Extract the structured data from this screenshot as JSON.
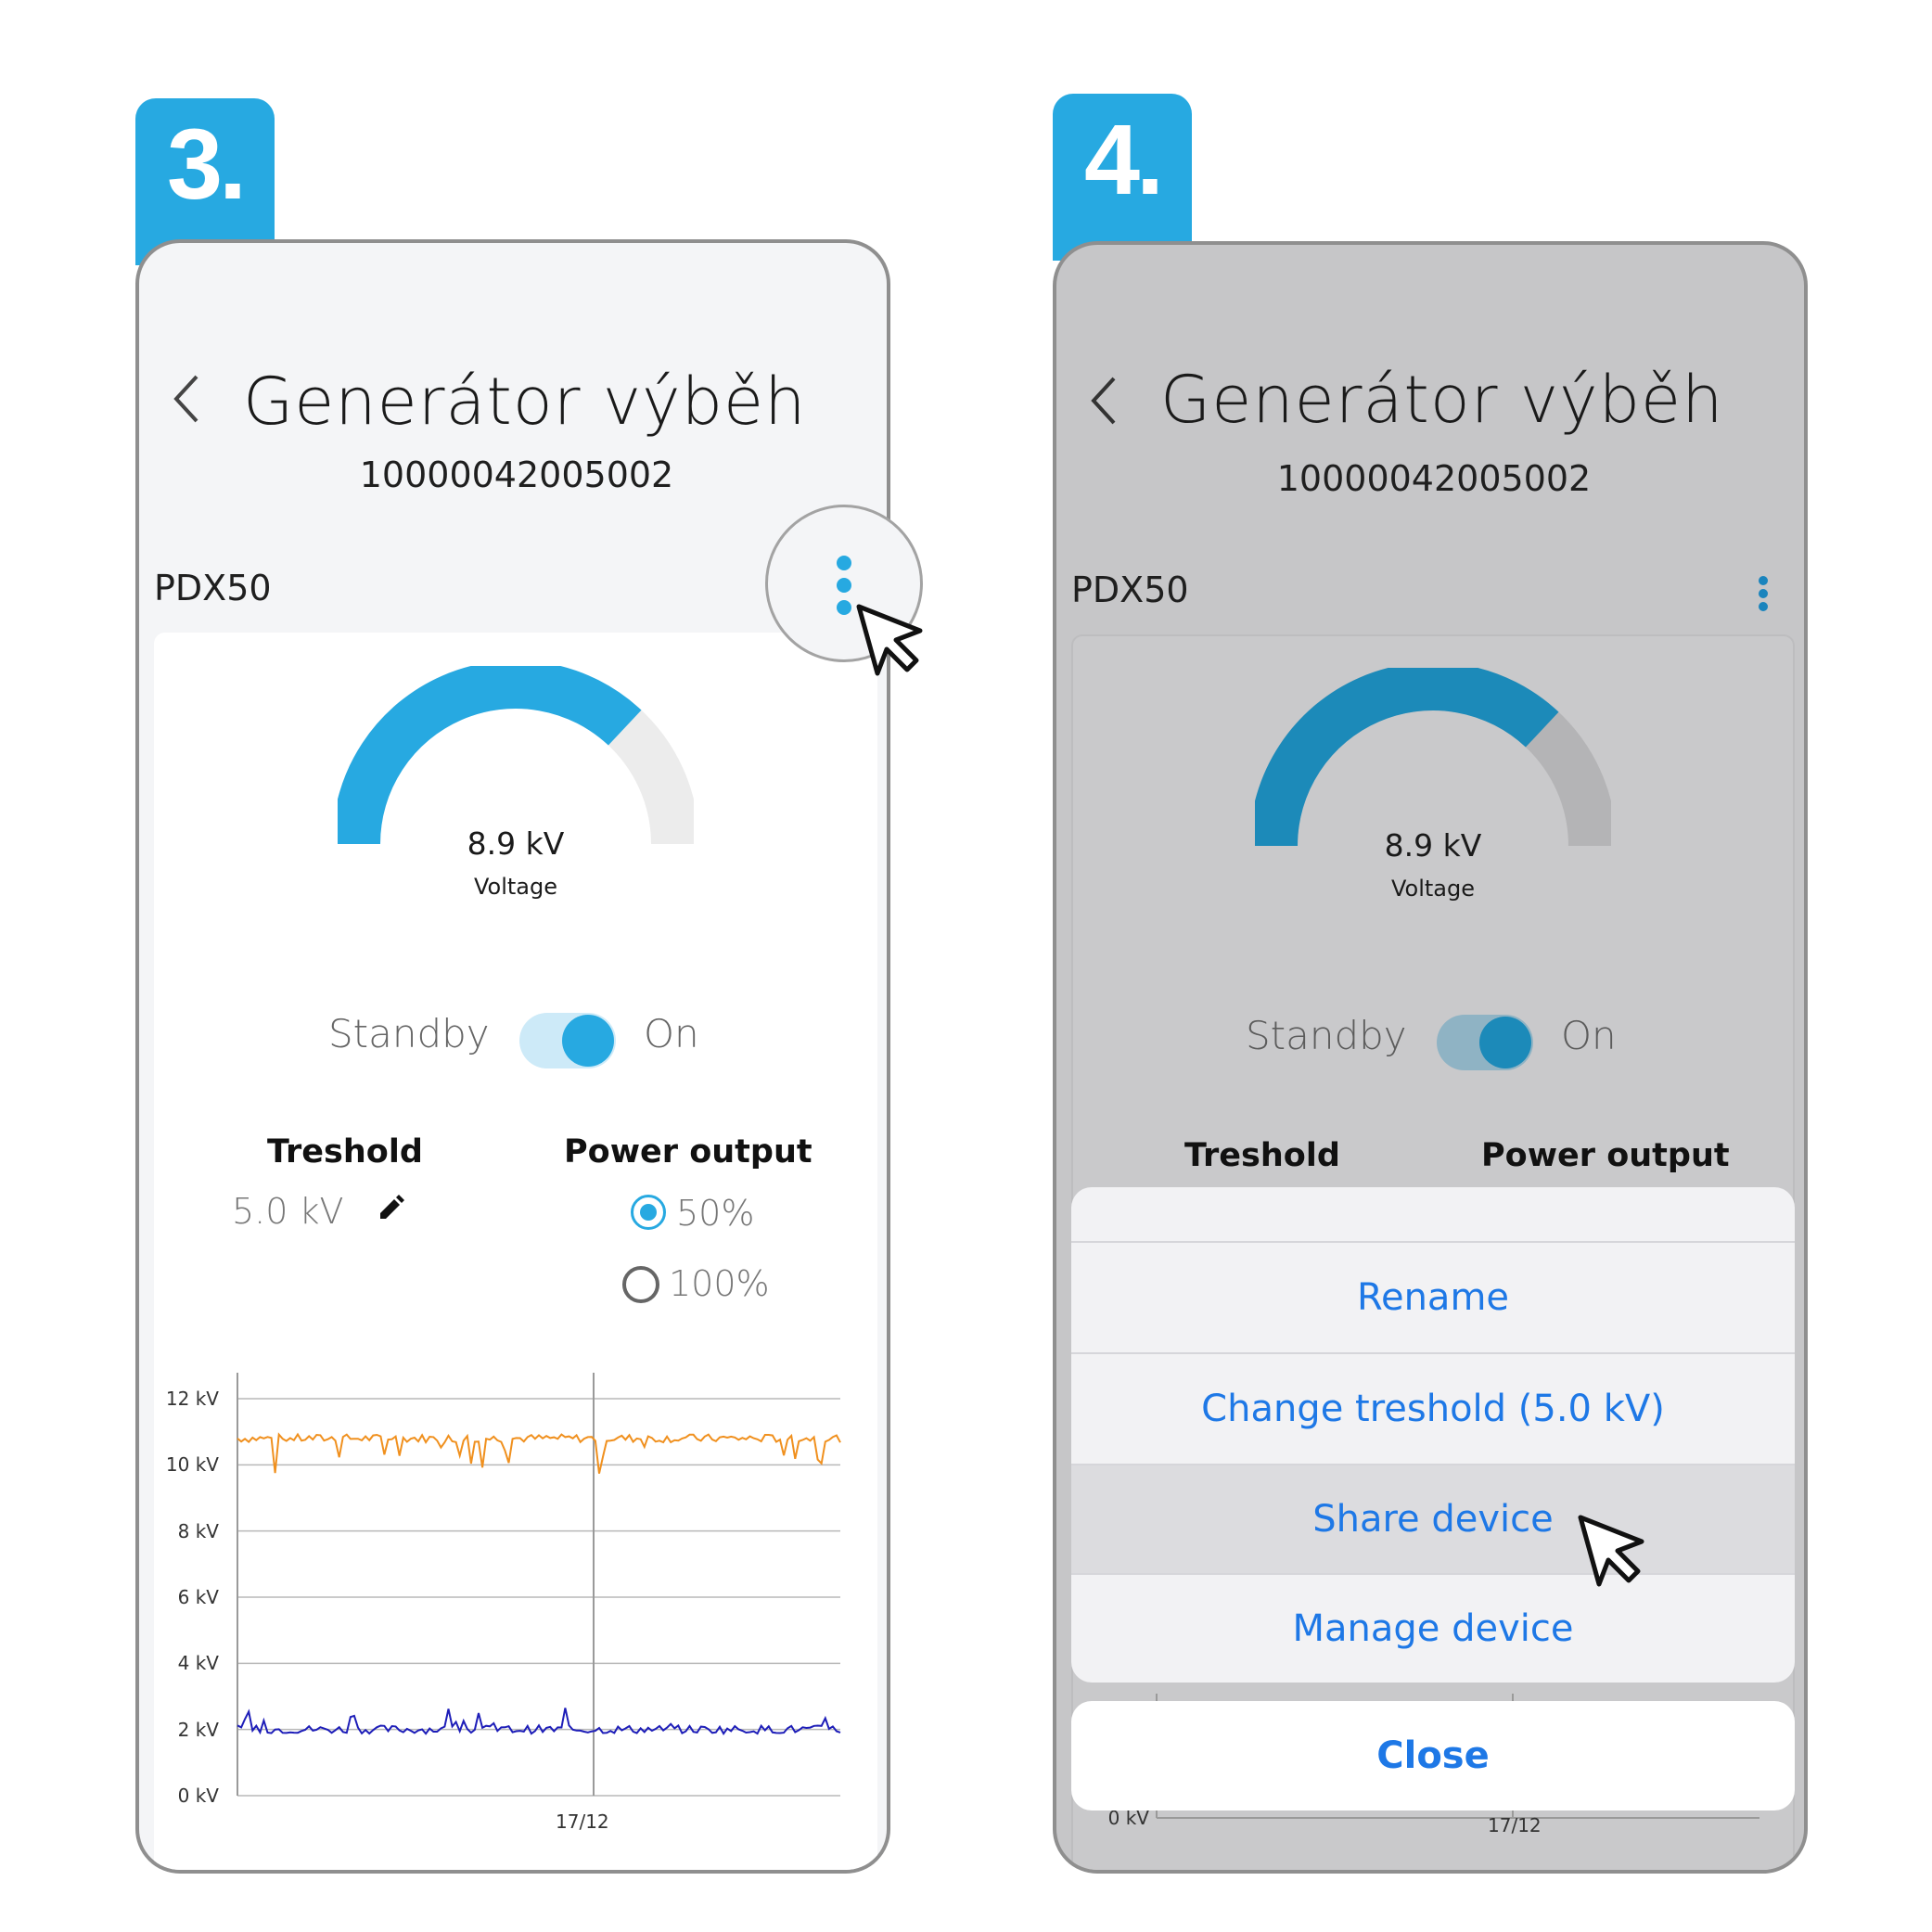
{
  "steps": [
    "3.",
    "4."
  ],
  "device": {
    "name": "Generátor výběh",
    "serial": "10000042005002",
    "model": "PDX50"
  },
  "gauge": {
    "value_text": "8.9 kV",
    "label": "Voltage",
    "fill_fraction": 0.74
  },
  "power_switch": {
    "off_label": "Standby",
    "on_label": "On",
    "state": "on"
  },
  "threshold": {
    "title": "Treshold",
    "value": "5.0 kV"
  },
  "power_output": {
    "title": "Power output",
    "options": [
      "50%",
      "100%"
    ],
    "selected": "50%"
  },
  "chart_data": {
    "type": "line",
    "y_ticks": [
      "12 kV",
      "10 kV",
      "8 kV",
      "6 kV",
      "4 kV",
      "2 kV",
      "0 kV"
    ],
    "ylim": [
      0,
      12
    ],
    "x_ticks": [
      "17/12"
    ],
    "grid": true,
    "series": [
      {
        "color": "#f0901e",
        "approx_level": 10.8,
        "min_dip": 9.9
      },
      {
        "color": "#1d1db8",
        "approx_level": 2.0,
        "max_peak": 2.7
      }
    ]
  },
  "action_sheet": {
    "items": [
      "Rename",
      "Change treshold (5.0 kV)",
      "Share device",
      "Manage device"
    ],
    "highlighted": "Share device",
    "close_label": "Close"
  },
  "colors": {
    "accent": "#27a9e1",
    "ios_blue": "#1e78e6",
    "orange_series": "#f0901e",
    "blue_series": "#1d1db8"
  },
  "icons": {
    "back": "chevron-left-icon",
    "menu": "more-vertical-icon",
    "edit": "pencil-icon",
    "cursor": "mouse-pointer-icon"
  }
}
